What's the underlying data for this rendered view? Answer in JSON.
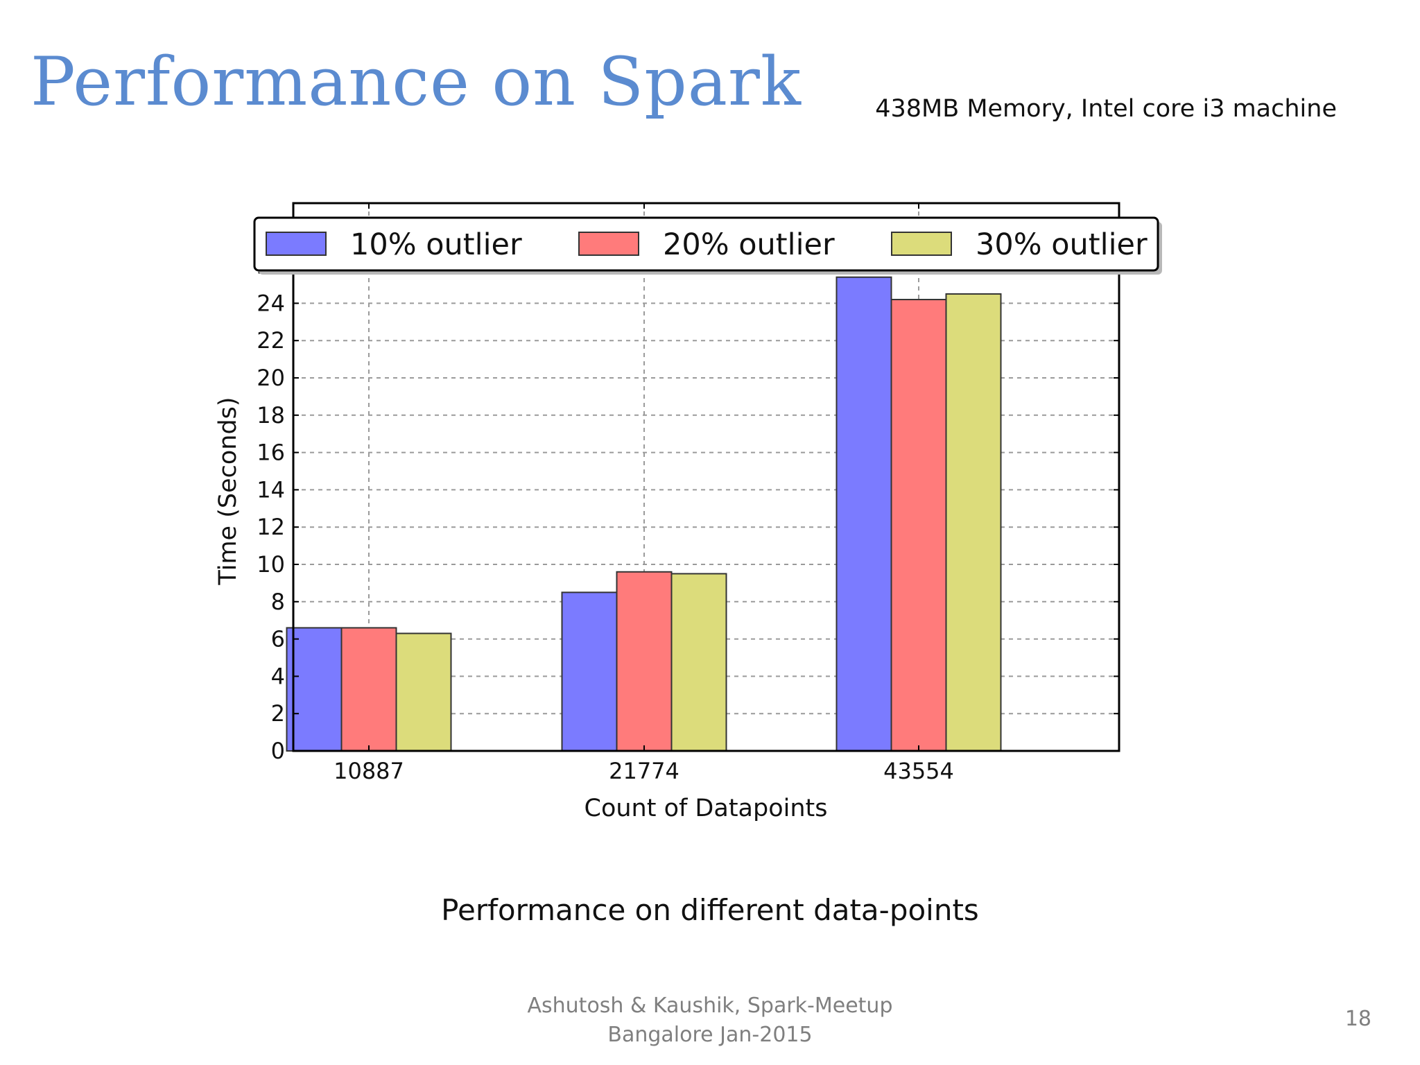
{
  "slide": {
    "title": "Performance on Spark",
    "machine_note": "438MB Memory, Intel core i3 machine",
    "caption": "Performance on different data-points",
    "footer_line1": "Ashutosh & Kaushik, Spark-Meetup",
    "footer_line2": "Bangalore Jan-2015",
    "page_number": "18"
  },
  "chart_data": {
    "type": "bar",
    "title": "",
    "xlabel": "Count of Datapoints",
    "ylabel": "Time (Seconds)",
    "categories": [
      "10887",
      "21774",
      "43554"
    ],
    "series": [
      {
        "name": "10% outlier",
        "values": [
          6.6,
          8.5,
          25.4
        ],
        "color": "#7b7bff"
      },
      {
        "name": "20% outlier",
        "values": [
          6.6,
          9.6,
          24.2
        ],
        "color": "#ff7b7b"
      },
      {
        "name": "30% outlier",
        "values": [
          6.3,
          9.5,
          24.5
        ],
        "color": "#dcdc7b"
      }
    ],
    "ylim": [
      0,
      30
    ],
    "yticks": [
      0,
      2,
      4,
      6,
      8,
      10,
      12,
      14,
      16,
      18,
      20,
      22,
      24,
      26
    ],
    "grid": true,
    "legend_position": "top"
  }
}
